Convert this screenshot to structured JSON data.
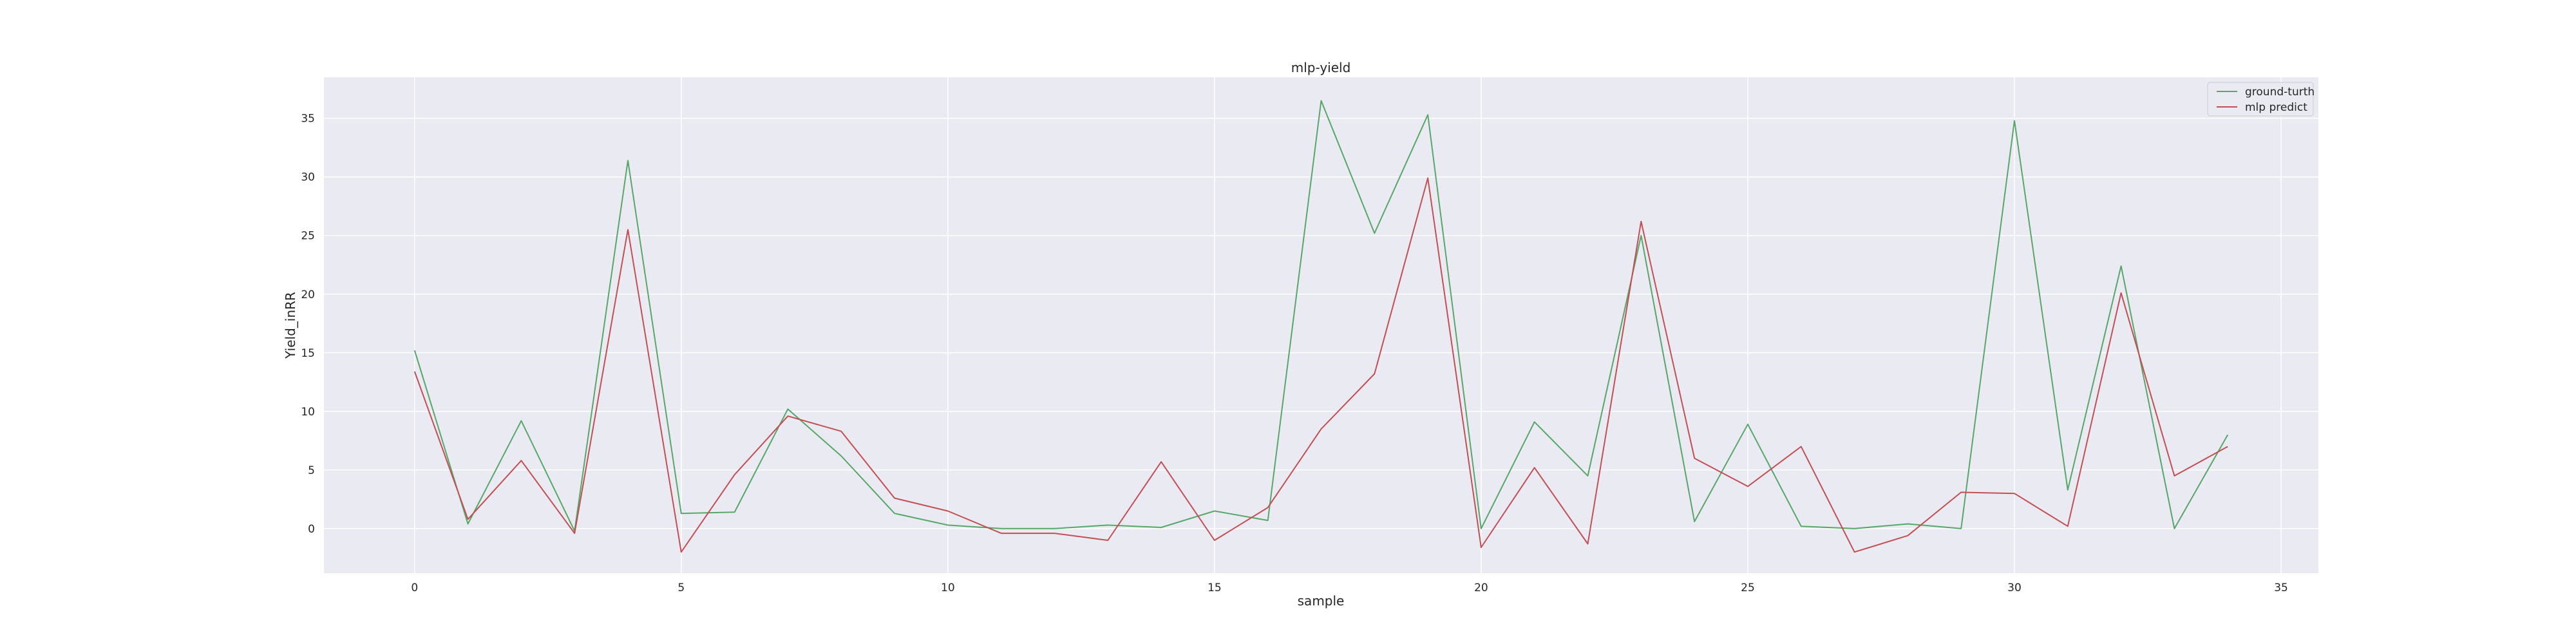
{
  "chart_data": {
    "type": "line",
    "title": "mlp-yield",
    "xlabel": "sample",
    "ylabel": "Yield_inRR",
    "xlim": [
      -1.7,
      35.7
    ],
    "ylim": [
      -3.8,
      38.5
    ],
    "xticks": [
      0,
      5,
      10,
      15,
      20,
      25,
      30,
      35
    ],
    "yticks": [
      0,
      5,
      10,
      15,
      20,
      25,
      30,
      35
    ],
    "grid": true,
    "legend_position": "top-right",
    "background_color": "#eaeaf2",
    "x": [
      0,
      1,
      2,
      3,
      4,
      5,
      6,
      7,
      8,
      9,
      10,
      11,
      12,
      13,
      14,
      15,
      16,
      17,
      18,
      19,
      20,
      21,
      22,
      23,
      24,
      25,
      26,
      27,
      28,
      29,
      30,
      31,
      32,
      33,
      34
    ],
    "series": [
      {
        "name": "ground-turth",
        "color": "#55a868",
        "values": [
          15.2,
          0.4,
          9.2,
          -0.2,
          31.4,
          1.3,
          1.4,
          10.2,
          6.2,
          1.3,
          0.3,
          0.0,
          0.0,
          0.3,
          0.1,
          1.5,
          0.7,
          36.5,
          25.2,
          35.3,
          0.0,
          9.1,
          4.5,
          25.0,
          0.6,
          8.9,
          0.2,
          0.0,
          0.4,
          0.0,
          34.8,
          3.3,
          22.4,
          0.0,
          8.0
        ]
      },
      {
        "name": "mlp predict",
        "color": "#c44e52",
        "values": [
          13.4,
          0.8,
          5.8,
          -0.4,
          25.5,
          -2.0,
          4.6,
          9.6,
          8.3,
          2.6,
          1.5,
          -0.4,
          -0.4,
          -1.0,
          5.7,
          -1.0,
          1.8,
          8.5,
          13.2,
          29.9,
          -1.6,
          5.2,
          -1.3,
          26.2,
          6.0,
          3.6,
          7.0,
          -2.0,
          -0.6,
          3.1,
          3.0,
          0.2,
          20.1,
          4.5,
          7.0
        ]
      }
    ]
  }
}
